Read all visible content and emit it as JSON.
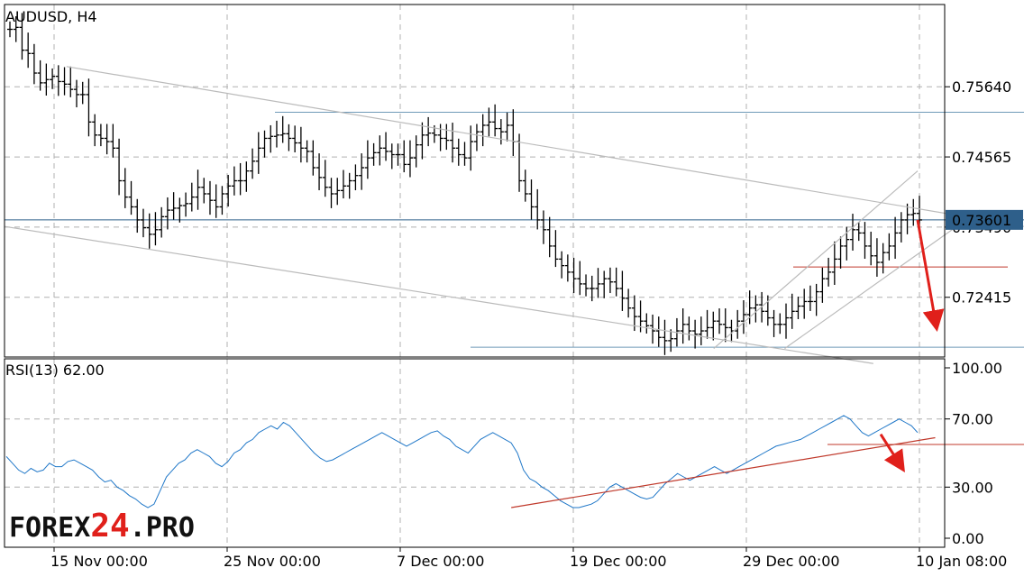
{
  "chart_data": [
    {
      "type": "candlestick",
      "title": "AUDUSD, H4",
      "ylim": [
        0.715,
        0.769
      ],
      "yticks": [
        {
          "value": 0.7564,
          "label": "0.75640"
        },
        {
          "value": 0.74565,
          "label": "0.74565"
        },
        {
          "value": 0.7349,
          "label": "0.73490"
        },
        {
          "value": 0.72415,
          "label": "0.72415"
        }
      ],
      "current_price": {
        "value": 0.73601,
        "label": "0.73601",
        "color": "#2e5f8a"
      },
      "horizontal_levels": [
        {
          "value": 0.7525,
          "color": "#6f9ab8"
        },
        {
          "value": 0.73601,
          "color": "#2e5f8a"
        },
        {
          "value": 0.7165,
          "color": "#6f9ab8"
        },
        {
          "value": 0.7288,
          "color": "#c0392b"
        }
      ],
      "trend_lines": [
        {
          "from": [
            7,
            0.7595
          ],
          "to": [
            115,
            0.735
          ],
          "color": "#bbbbbb"
        },
        {
          "from": [
            0,
            0.735
          ],
          "to": [
            98,
            0.714
          ],
          "color": "#bbbbbb"
        },
        {
          "from": [
            80,
            0.7163
          ],
          "to": [
            103,
            0.7435
          ],
          "color": "#bbbbbb"
        },
        {
          "from": [
            88,
            0.7163
          ],
          "to": [
            110,
            0.7375
          ],
          "color": "#bbbbbb"
        }
      ],
      "forecast_arrow": {
        "from": [
          103,
          0.736
        ],
        "to": [
          105,
          0.7205
        ],
        "color": "#e0201b"
      },
      "series": [
        {
          "values": [
            0.7652,
            0.7655,
            0.762,
            0.7615,
            0.7585,
            0.757,
            0.7575,
            0.758,
            0.7572,
            0.7568,
            0.756,
            0.7552,
            0.7552,
            0.751,
            0.749,
            0.7485,
            0.748,
            0.747,
            0.742,
            0.7395,
            0.738,
            0.736,
            0.7348,
            0.7338,
            0.7345,
            0.7365,
            0.7375,
            0.7378,
            0.7382,
            0.7385,
            0.7395,
            0.741,
            0.74,
            0.739,
            0.738,
            0.74,
            0.7412,
            0.742,
            0.742,
            0.7435,
            0.745,
            0.747,
            0.7485,
            0.7488,
            0.749,
            0.7492,
            0.7485,
            0.7478,
            0.747,
            0.7465,
            0.744,
            0.7425,
            0.741,
            0.74,
            0.7405,
            0.7412,
            0.742,
            0.7428,
            0.744,
            0.7455,
            0.7463,
            0.747,
            0.7465,
            0.746,
            0.746,
            0.7445,
            0.7455,
            0.7475,
            0.749,
            0.7493,
            0.749,
            0.7485,
            0.7482,
            0.747,
            0.746,
            0.7455,
            0.748,
            0.7495,
            0.7505,
            0.751,
            0.75,
            0.7495,
            0.7505,
            0.748,
            0.742,
            0.74,
            0.738,
            0.736,
            0.7345,
            0.732,
            0.73,
            0.729,
            0.728,
            0.727,
            0.7262,
            0.7255,
            0.7255,
            0.7262,
            0.727,
            0.7265,
            0.7255,
            0.724,
            0.7225,
            0.7212,
            0.7205,
            0.7198,
            0.719,
            0.718,
            0.7175,
            0.7178,
            0.719,
            0.72,
            0.719,
            0.7185,
            0.719,
            0.7195,
            0.7205,
            0.72,
            0.7195,
            0.719,
            0.7205,
            0.7215,
            0.7225,
            0.723,
            0.722,
            0.721,
            0.72,
            0.72,
            0.721,
            0.722,
            0.7228,
            0.7235,
            0.7235,
            0.725,
            0.727,
            0.728,
            0.73,
            0.732,
            0.733,
            0.7345,
            0.734,
            0.732,
            0.7305,
            0.7295,
            0.731,
            0.732,
            0.734,
            0.736,
            0.7368,
            0.737,
            0.736
          ]
        }
      ],
      "x_start": 0,
      "x_end": 130
    },
    {
      "type": "line",
      "title": "RSI(13) 62.00",
      "ylim": [
        0,
        100
      ],
      "yticks": [
        {
          "value": 100,
          "label": "100.00"
        },
        {
          "value": 70,
          "label": "70.00"
        },
        {
          "value": 30,
          "label": "30.00"
        },
        {
          "value": 0,
          "label": "0.00"
        }
      ],
      "series": [
        {
          "color": "#1f77c8",
          "values": [
            48,
            44,
            40,
            38,
            41,
            39,
            40,
            44,
            42,
            42,
            45,
            46,
            44,
            42,
            40,
            36,
            33,
            34,
            30,
            28,
            25,
            23,
            20,
            18,
            20,
            28,
            36,
            40,
            44,
            46,
            50,
            52,
            50,
            48,
            44,
            42,
            45,
            50,
            52,
            56,
            58,
            62,
            64,
            66,
            64,
            68,
            66,
            62,
            58,
            54,
            50,
            47,
            45,
            46,
            48,
            50,
            52,
            54,
            56,
            58,
            60,
            62,
            60,
            58,
            56,
            54,
            56,
            58,
            60,
            62,
            63,
            60,
            58,
            54,
            52,
            50,
            54,
            58,
            60,
            62,
            60,
            58,
            56,
            50,
            40,
            35,
            33,
            30,
            28,
            25,
            22,
            20,
            18,
            18,
            19,
            20,
            22,
            26,
            30,
            32,
            30,
            28,
            26,
            24,
            23,
            24,
            28,
            32,
            35,
            38,
            36,
            34,
            36,
            38,
            40,
            42,
            40,
            38,
            40,
            42,
            44,
            46,
            48,
            50,
            52,
            54,
            55,
            56,
            57,
            58,
            60,
            62,
            64,
            66,
            68,
            70,
            72,
            70,
            66,
            62,
            60,
            62,
            64,
            66,
            68,
            70,
            68,
            66,
            62
          ]
        },
        {
          "values": [],
          "color": "#c0392b"
        }
      ],
      "horizontal_levels": [
        {
          "value": 55,
          "color": "#c0392b"
        }
      ],
      "trend_lines": [
        {
          "from": [
            82,
            18
          ],
          "to": [
            145,
            59
          ],
          "color": "#c0392b"
        }
      ],
      "forecast_arrow": {
        "from": [
          142,
          61
        ],
        "to": [
          145,
          44
        ],
        "color": "#e0201b"
      }
    }
  ],
  "x_axis": {
    "labels": [
      {
        "index": 16,
        "label": "15 Nov 00:00"
      },
      {
        "index": 43,
        "label": "25 Nov 00:00"
      },
      {
        "index": 70,
        "label": "7 Dec 00:00"
      },
      {
        "index": 97,
        "label": "19 Dec 00:00"
      },
      {
        "index": 124,
        "label": "29 Dec 00:00"
      },
      {
        "index": 151,
        "label": "10 Jan 08:00"
      }
    ]
  },
  "logo": {
    "part1": "FOREX",
    "part2": "24",
    "part3": ".PRO",
    "color_dark": "#111111",
    "color_accent": "#e0201b"
  }
}
